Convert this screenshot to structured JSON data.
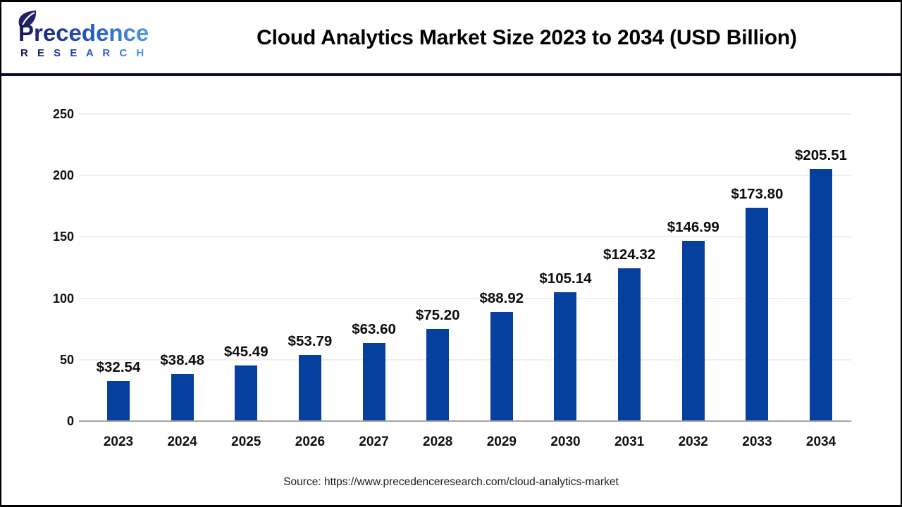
{
  "header": {
    "logo_name": "Precedence",
    "logo_sub": "R E S E A R C H",
    "title": "Cloud Analytics Market Size 2023 to 2034 (USD Billion)"
  },
  "footer": {
    "source": "Source: https://www.precedenceresearch.com/cloud-analytics-market"
  },
  "chart_data": {
    "type": "bar",
    "title": "Cloud Analytics Market Size 2023 to 2034 (USD Billion)",
    "unit": "USD Billion",
    "categories": [
      "2023",
      "2024",
      "2025",
      "2026",
      "2027",
      "2028",
      "2029",
      "2030",
      "2031",
      "2032",
      "2033",
      "2034"
    ],
    "values": [
      32.54,
      38.48,
      45.49,
      53.79,
      63.6,
      75.2,
      88.92,
      105.14,
      124.32,
      146.99,
      173.8,
      205.51
    ],
    "value_labels": [
      "$32.54",
      "$38.48",
      "$45.49",
      "$53.79",
      "$63.60",
      "$75.20",
      "$88.92",
      "$105.14",
      "$124.32",
      "$146.99",
      "$173.80",
      "$205.51"
    ],
    "xlabel": "",
    "ylabel": "",
    "ylim": [
      0,
      250
    ],
    "yticks": [
      0,
      50,
      100,
      150,
      200,
      250
    ],
    "grid": "horizontal",
    "legend": false,
    "bar_color": "#05409F"
  },
  "colors": {
    "bar": "#05409F",
    "separator": "#0e0e35",
    "grid_line": "#efefef",
    "axis_line": "#a3a3a3",
    "text": "#111111",
    "background": "#ffffff",
    "border": "#000000",
    "logo_gradient_start": "#1c1653",
    "logo_gradient_mid": "#2356c7",
    "logo_gradient_end": "#4f9de6"
  }
}
